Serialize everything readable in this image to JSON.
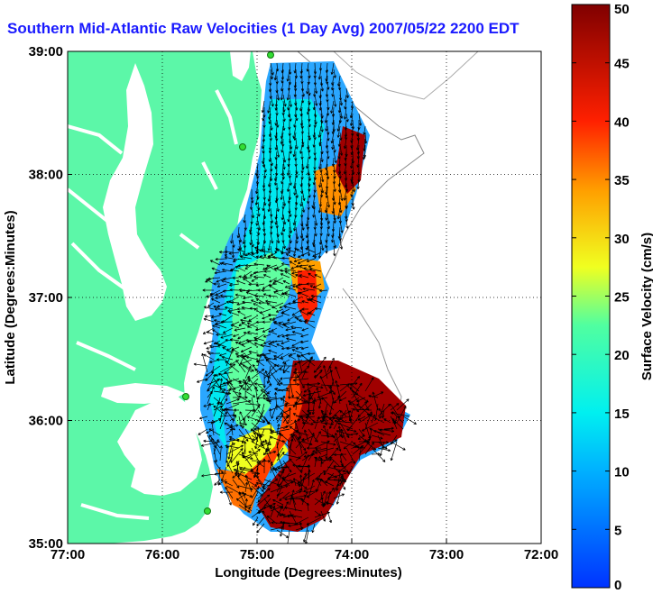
{
  "map": {
    "title": "Southern Mid-Atlantic Raw Velocities (1 Day Avg) 2007/05/22 2200 EDT",
    "xlabel": "Longitude (Degrees:Minutes)",
    "ylabel": "Latitude (Degrees:Minutes)",
    "x_ticks": [
      "77:00",
      "76:00",
      "75:00",
      "74:00",
      "73:00",
      "72:00"
    ],
    "y_ticks": [
      "39:00",
      "38:00",
      "37:00",
      "36:00",
      "35:00"
    ],
    "xlim": [
      -77,
      -72
    ],
    "ylim": [
      35,
      39
    ],
    "grid": true,
    "land_color": "#5cf7a8",
    "colorbar": {
      "label": "Surface Velocity (cm/s)",
      "ticks": [
        "50",
        "45",
        "40",
        "35",
        "30",
        "25",
        "20",
        "15",
        "10",
        "5",
        "0"
      ],
      "range": [
        0,
        50
      ],
      "colormap": "jet"
    }
  }
}
